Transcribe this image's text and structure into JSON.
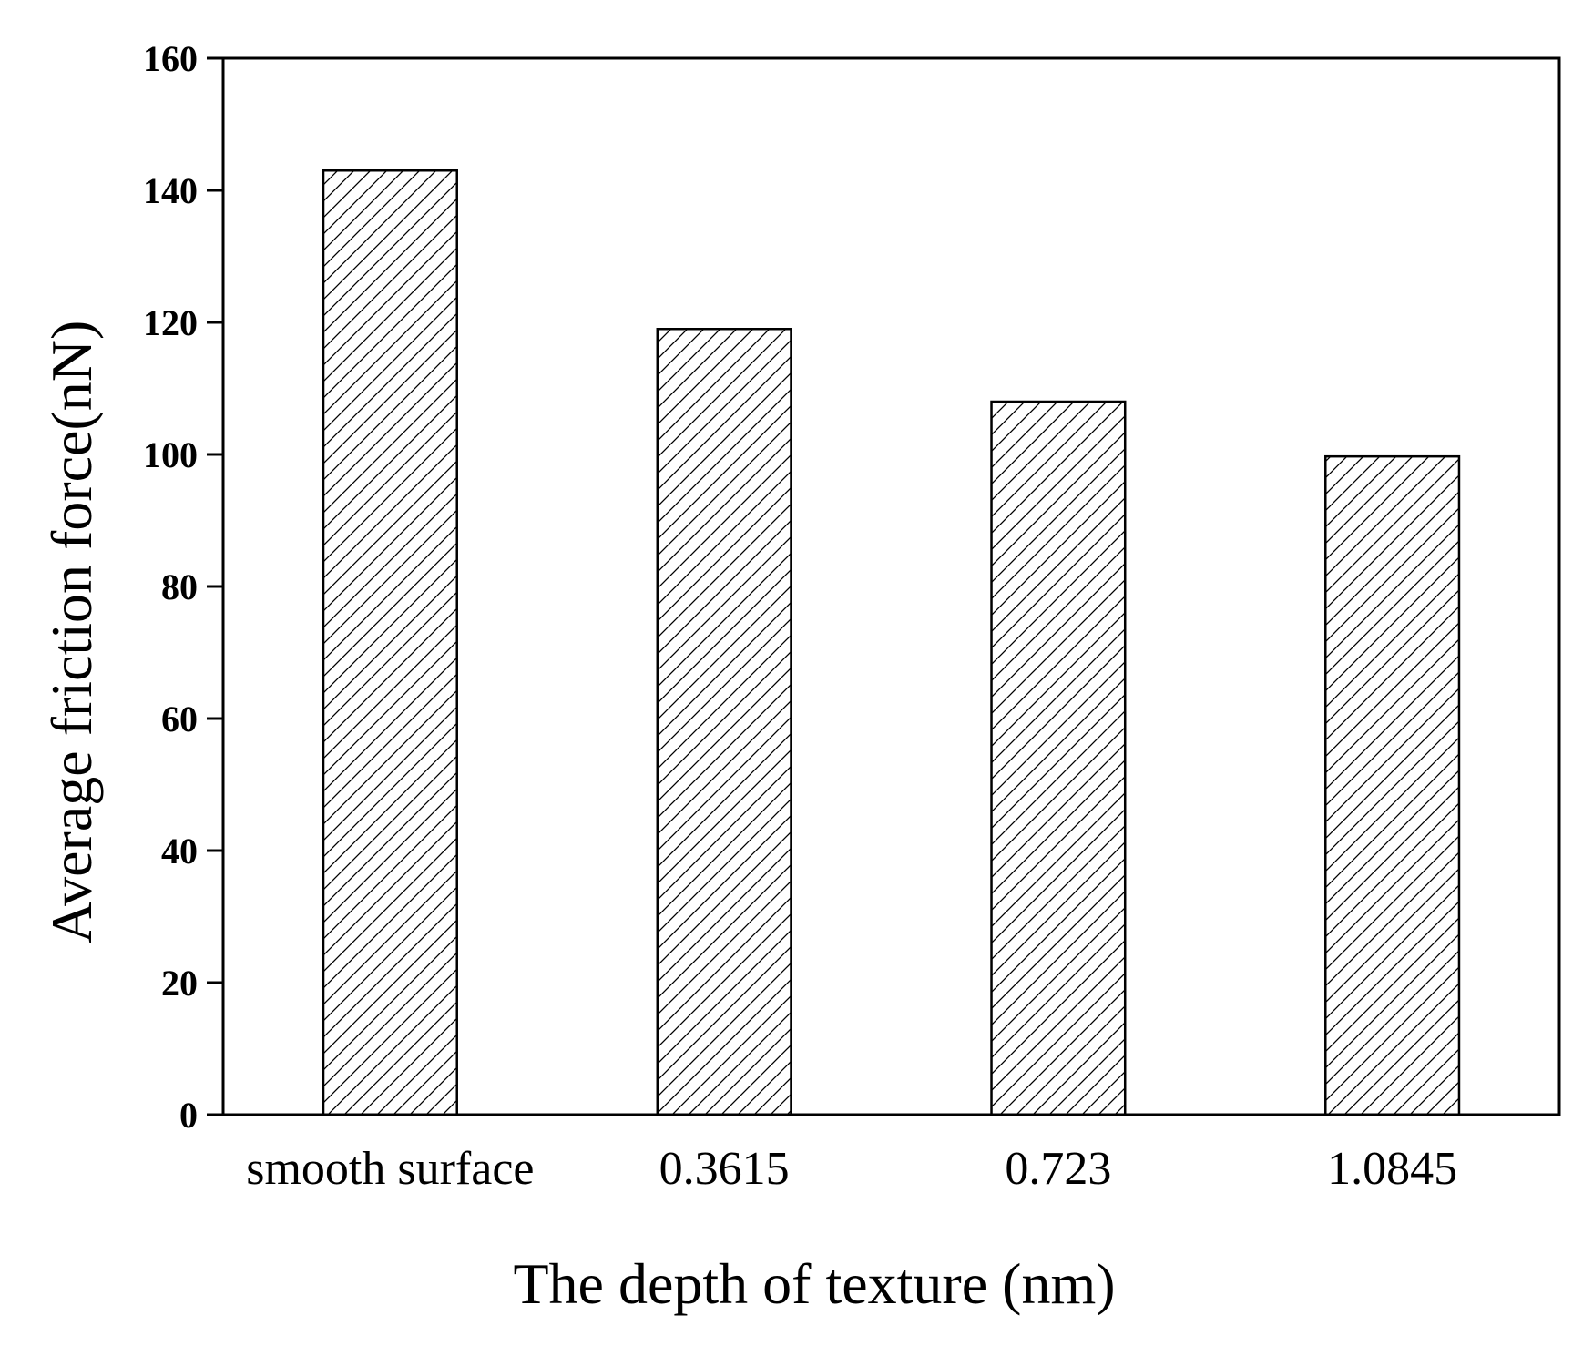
{
  "chart_data": {
    "type": "bar",
    "categories": [
      "smooth surface",
      "0.3615",
      "0.723",
      "1.0845"
    ],
    "values": [
      143,
      119,
      108,
      99.7
    ],
    "xlabel": "The depth of texture (nm)",
    "ylabel": "Average friction force(nN)",
    "ylim": [
      0,
      160
    ],
    "yticks": [
      0,
      20,
      40,
      60,
      80,
      100,
      120,
      140,
      160
    ],
    "grid": false,
    "bar_fill": "hatched",
    "bar_edge_color": "#000000"
  }
}
